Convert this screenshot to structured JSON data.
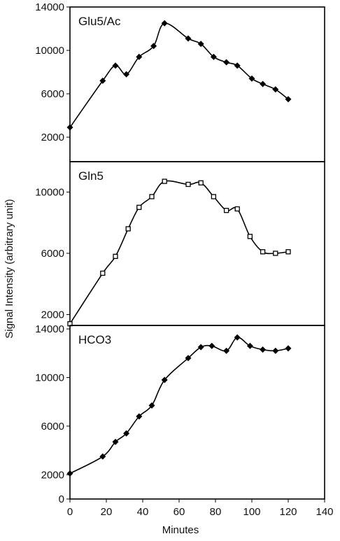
{
  "chart_data": {
    "type": "line",
    "shared_x_axis": {
      "label": "Minutes",
      "range": [
        0,
        140
      ],
      "ticks": [
        0,
        20,
        40,
        60,
        80,
        100,
        120,
        140
      ]
    },
    "shared_y_label": "Signal Intensity (arbitrary unit)",
    "grid": false,
    "legend": "none",
    "line_color": "#000000",
    "panels": [
      {
        "title": "Glu5/Ac",
        "marker": "diamond",
        "ylim": [
          0,
          14000
        ],
        "y_ticks": [
          2000,
          6000,
          10000,
          14000
        ],
        "x": [
          0,
          18,
          25,
          31,
          38,
          46,
          52,
          65,
          72,
          79,
          86,
          92,
          100,
          106,
          113,
          120
        ],
        "y": [
          2900,
          7200,
          8600,
          7800,
          9400,
          10400,
          12500,
          11100,
          10600,
          9400,
          8900,
          8600,
          7400,
          6900,
          6400,
          5500
        ]
      },
      {
        "title": "Gln5",
        "marker": "square",
        "ylim": [
          1200,
          11800
        ],
        "y_ticks": [
          2000,
          6000,
          10000
        ],
        "x": [
          0,
          18,
          25,
          32,
          38,
          45,
          52,
          65,
          72,
          79,
          86,
          92,
          99,
          106,
          113,
          120
        ],
        "y": [
          1400,
          4700,
          5800,
          7600,
          9000,
          9700,
          10700,
          10500,
          10600,
          9700,
          8800,
          8900,
          7100,
          6100,
          6000,
          6100
        ]
      },
      {
        "title": "HCO3",
        "marker": "diamond",
        "ylim": [
          0,
          14000
        ],
        "y_ticks": [
          0,
          2000,
          6000,
          10000,
          14000
        ],
        "x": [
          0,
          18,
          25,
          31,
          38,
          45,
          52,
          65,
          72,
          78,
          86,
          92,
          99,
          106,
          113,
          120
        ],
        "y": [
          2100,
          3500,
          4700,
          5400,
          6800,
          7700,
          9800,
          11600,
          12500,
          12600,
          12200,
          13300,
          12600,
          12300,
          12200,
          12400
        ]
      }
    ]
  }
}
